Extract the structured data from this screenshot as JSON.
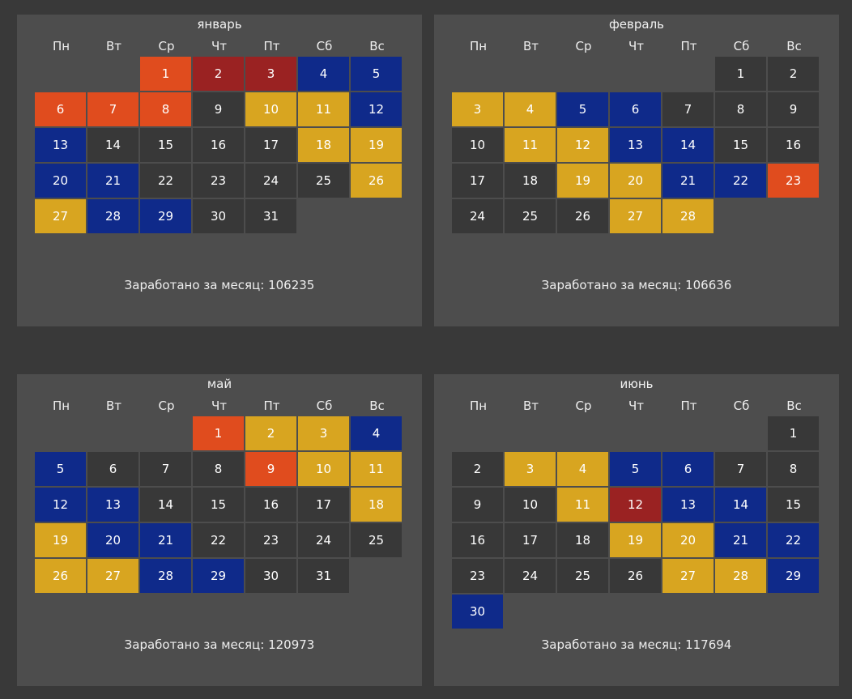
{
  "colors": {
    "plain": "#383838",
    "blue": "#0f2a8a",
    "yellow": "#d8a520",
    "orange": "#e04c1e",
    "darkred": "#9a2222"
  },
  "earned_prefix": "Заработано за месяц: ",
  "months": [
    {
      "title": "январь",
      "weekdays": [
        "Пн",
        "Вт",
        "Ср",
        "Чт",
        "Пт",
        "Сб",
        "Вс"
      ],
      "start_offset": 2,
      "days": [
        {
          "n": "1",
          "s": "orange"
        },
        {
          "n": "2",
          "s": "darkred"
        },
        {
          "n": "3",
          "s": "darkred"
        },
        {
          "n": "4",
          "s": "blue"
        },
        {
          "n": "5",
          "s": "blue"
        },
        {
          "n": "6",
          "s": "orange"
        },
        {
          "n": "7",
          "s": "orange"
        },
        {
          "n": "8",
          "s": "orange"
        },
        {
          "n": "9",
          "s": "plain"
        },
        {
          "n": "10",
          "s": "yellow"
        },
        {
          "n": "11",
          "s": "yellow"
        },
        {
          "n": "12",
          "s": "blue"
        },
        {
          "n": "13",
          "s": "blue"
        },
        {
          "n": "14",
          "s": "plain"
        },
        {
          "n": "15",
          "s": "plain"
        },
        {
          "n": "16",
          "s": "plain"
        },
        {
          "n": "17",
          "s": "plain"
        },
        {
          "n": "18",
          "s": "yellow"
        },
        {
          "n": "19",
          "s": "yellow"
        },
        {
          "n": "20",
          "s": "blue"
        },
        {
          "n": "21",
          "s": "blue"
        },
        {
          "n": "22",
          "s": "plain"
        },
        {
          "n": "23",
          "s": "plain"
        },
        {
          "n": "24",
          "s": "plain"
        },
        {
          "n": "25",
          "s": "plain"
        },
        {
          "n": "26",
          "s": "yellow"
        },
        {
          "n": "27",
          "s": "yellow"
        },
        {
          "n": "28",
          "s": "blue"
        },
        {
          "n": "29",
          "s": "blue"
        },
        {
          "n": "30",
          "s": "plain"
        },
        {
          "n": "31",
          "s": "plain"
        }
      ],
      "earned": "106235"
    },
    {
      "title": "февраль",
      "weekdays": [
        "Пн",
        "Вт",
        "Ср",
        "Чт",
        "Пт",
        "Сб",
        "Вс"
      ],
      "start_offset": 5,
      "days": [
        {
          "n": "1",
          "s": "plain"
        },
        {
          "n": "2",
          "s": "plain"
        },
        {
          "n": "3",
          "s": "yellow"
        },
        {
          "n": "4",
          "s": "yellow"
        },
        {
          "n": "5",
          "s": "blue"
        },
        {
          "n": "6",
          "s": "blue"
        },
        {
          "n": "7",
          "s": "plain"
        },
        {
          "n": "8",
          "s": "plain"
        },
        {
          "n": "9",
          "s": "plain"
        },
        {
          "n": "10",
          "s": "plain"
        },
        {
          "n": "11",
          "s": "yellow"
        },
        {
          "n": "12",
          "s": "yellow"
        },
        {
          "n": "13",
          "s": "blue"
        },
        {
          "n": "14",
          "s": "blue"
        },
        {
          "n": "15",
          "s": "plain"
        },
        {
          "n": "16",
          "s": "plain"
        },
        {
          "n": "17",
          "s": "plain"
        },
        {
          "n": "18",
          "s": "plain"
        },
        {
          "n": "19",
          "s": "yellow"
        },
        {
          "n": "20",
          "s": "yellow"
        },
        {
          "n": "21",
          "s": "blue"
        },
        {
          "n": "22",
          "s": "blue"
        },
        {
          "n": "23",
          "s": "orange"
        },
        {
          "n": "24",
          "s": "plain"
        },
        {
          "n": "25",
          "s": "plain"
        },
        {
          "n": "26",
          "s": "plain"
        },
        {
          "n": "27",
          "s": "yellow"
        },
        {
          "n": "28",
          "s": "yellow"
        }
      ],
      "earned": "106636"
    },
    {
      "title": "май",
      "weekdays": [
        "Пн",
        "Вт",
        "Ср",
        "Чт",
        "Пт",
        "Сб",
        "Вс"
      ],
      "start_offset": 3,
      "days": [
        {
          "n": "1",
          "s": "orange"
        },
        {
          "n": "2",
          "s": "yellow"
        },
        {
          "n": "3",
          "s": "yellow"
        },
        {
          "n": "4",
          "s": "blue"
        },
        {
          "n": "5",
          "s": "blue"
        },
        {
          "n": "6",
          "s": "plain"
        },
        {
          "n": "7",
          "s": "plain"
        },
        {
          "n": "8",
          "s": "plain"
        },
        {
          "n": "9",
          "s": "orange"
        },
        {
          "n": "10",
          "s": "yellow"
        },
        {
          "n": "11",
          "s": "yellow"
        },
        {
          "n": "12",
          "s": "blue"
        },
        {
          "n": "13",
          "s": "blue"
        },
        {
          "n": "14",
          "s": "plain"
        },
        {
          "n": "15",
          "s": "plain"
        },
        {
          "n": "16",
          "s": "plain"
        },
        {
          "n": "17",
          "s": "plain"
        },
        {
          "n": "18",
          "s": "yellow"
        },
        {
          "n": "19",
          "s": "yellow"
        },
        {
          "n": "20",
          "s": "blue"
        },
        {
          "n": "21",
          "s": "blue"
        },
        {
          "n": "22",
          "s": "plain"
        },
        {
          "n": "23",
          "s": "plain"
        },
        {
          "n": "24",
          "s": "plain"
        },
        {
          "n": "25",
          "s": "plain"
        },
        {
          "n": "26",
          "s": "yellow"
        },
        {
          "n": "27",
          "s": "yellow"
        },
        {
          "n": "28",
          "s": "blue"
        },
        {
          "n": "29",
          "s": "blue"
        },
        {
          "n": "30",
          "s": "plain"
        },
        {
          "n": "31",
          "s": "plain"
        }
      ],
      "earned": "120973"
    },
    {
      "title": "июнь",
      "weekdays": [
        "Пн",
        "Вт",
        "Ср",
        "Чт",
        "Пт",
        "Сб",
        "Вс"
      ],
      "start_offset": 6,
      "days": [
        {
          "n": "1",
          "s": "plain"
        },
        {
          "n": "2",
          "s": "plain"
        },
        {
          "n": "3",
          "s": "yellow"
        },
        {
          "n": "4",
          "s": "yellow"
        },
        {
          "n": "5",
          "s": "blue"
        },
        {
          "n": "6",
          "s": "blue"
        },
        {
          "n": "7",
          "s": "plain"
        },
        {
          "n": "8",
          "s": "plain"
        },
        {
          "n": "9",
          "s": "plain"
        },
        {
          "n": "10",
          "s": "plain"
        },
        {
          "n": "11",
          "s": "yellow"
        },
        {
          "n": "12",
          "s": "darkred"
        },
        {
          "n": "13",
          "s": "blue"
        },
        {
          "n": "14",
          "s": "blue"
        },
        {
          "n": "15",
          "s": "plain"
        },
        {
          "n": "16",
          "s": "plain"
        },
        {
          "n": "17",
          "s": "plain"
        },
        {
          "n": "18",
          "s": "plain"
        },
        {
          "n": "19",
          "s": "yellow"
        },
        {
          "n": "20",
          "s": "yellow"
        },
        {
          "n": "21",
          "s": "blue"
        },
        {
          "n": "22",
          "s": "blue"
        },
        {
          "n": "23",
          "s": "plain"
        },
        {
          "n": "24",
          "s": "plain"
        },
        {
          "n": "25",
          "s": "plain"
        },
        {
          "n": "26",
          "s": "plain"
        },
        {
          "n": "27",
          "s": "yellow"
        },
        {
          "n": "28",
          "s": "yellow"
        },
        {
          "n": "29",
          "s": "blue"
        },
        {
          "n": "30",
          "s": "blue"
        }
      ],
      "earned": "117694"
    }
  ]
}
